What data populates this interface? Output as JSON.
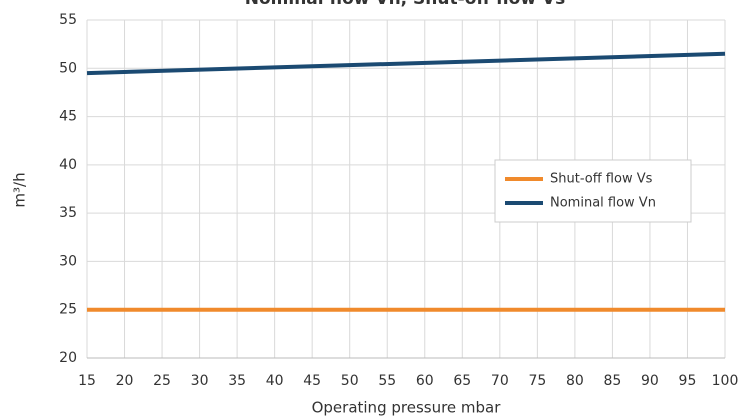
{
  "chart_data": {
    "type": "line",
    "title": "Nominal flow  Vn, Shut-off flow  Vs",
    "x_label": "Operating pressure mbar",
    "y_label": "m³/h",
    "x": [
      15,
      100
    ],
    "series": [
      {
        "name": "Shut-off flow  Vs",
        "color": "#f08a2c",
        "values": [
          25,
          25
        ]
      },
      {
        "name": "Nominal flow  Vn",
        "color": "#1b4a72",
        "values": [
          49.5,
          51.5
        ]
      }
    ],
    "xlim": [
      15,
      100
    ],
    "xticks": [
      15,
      20,
      25,
      30,
      35,
      40,
      45,
      50,
      55,
      60,
      65,
      70,
      75,
      80,
      85,
      90,
      95,
      100
    ],
    "ylim": [
      20,
      55
    ],
    "yticks": [
      20,
      25,
      30,
      35,
      40,
      45,
      50,
      55
    ],
    "grid": true,
    "legend": "right"
  }
}
